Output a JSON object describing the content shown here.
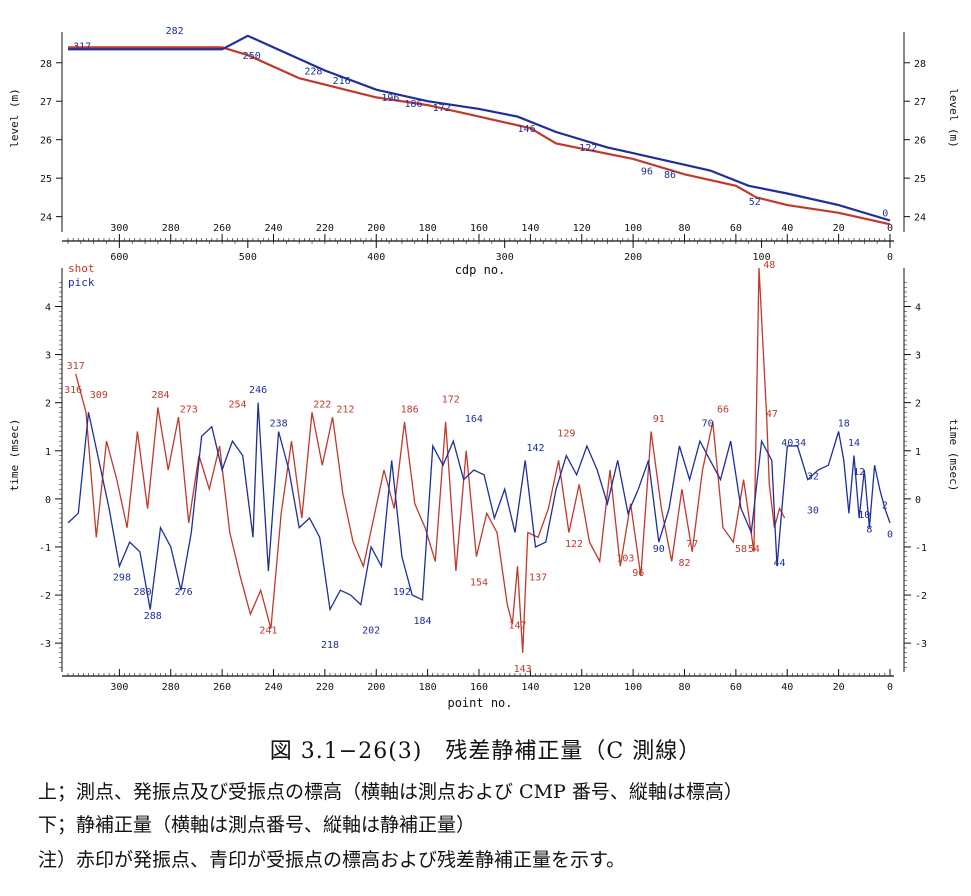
{
  "chart_data": [
    {
      "type": "line",
      "ylabel": "level (m)",
      "xlabel": "cdp no.",
      "y_ticks": [
        24,
        25,
        26,
        27,
        28
      ],
      "ylim": [
        23.6,
        28.8
      ],
      "x_point_ticks": [
        300,
        280,
        260,
        240,
        220,
        200,
        180,
        160,
        140,
        120,
        100,
        80,
        60,
        40,
        20,
        0
      ],
      "x_cdp_ticks": [
        600,
        500,
        400,
        300,
        200,
        100,
        0
      ],
      "xlim_point": [
        320,
        0
      ],
      "series": [
        {
          "color": "#c0392b",
          "x": [
            320,
            300,
            260,
            250,
            230,
            200,
            180,
            160,
            140,
            130,
            100,
            80,
            60,
            52,
            40,
            20,
            0
          ],
          "y": [
            28.4,
            28.4,
            28.4,
            28.2,
            27.6,
            27.1,
            26.9,
            26.6,
            26.3,
            25.9,
            25.5,
            25.1,
            24.8,
            24.5,
            24.3,
            24.1,
            23.8
          ]
        },
        {
          "color": "#1f2f9a",
          "x": [
            320,
            300,
            280,
            260,
            250,
            240,
            220,
            200,
            180,
            160,
            145,
            130,
            110,
            90,
            70,
            55,
            40,
            20,
            0
          ],
          "y": [
            28.35,
            28.35,
            28.35,
            28.35,
            28.7,
            28.4,
            27.8,
            27.3,
            27.0,
            26.8,
            26.6,
            26.2,
            25.8,
            25.5,
            25.2,
            24.8,
            24.6,
            24.3,
            23.9
          ]
        }
      ],
      "labels": [
        {
          "text": "317",
          "x": 318,
          "y": 28.35
        },
        {
          "text": "282",
          "x": 282,
          "y": 28.75
        },
        {
          "text": "250",
          "x": 252,
          "y": 28.1
        },
        {
          "text": "228",
          "x": 228,
          "y": 27.7
        },
        {
          "text": "216",
          "x": 217,
          "y": 27.45
        },
        {
          "text": "196",
          "x": 198,
          "y": 27.0
        },
        {
          "text": "186",
          "x": 189,
          "y": 26.85
        },
        {
          "text": "172",
          "x": 178,
          "y": 26.75
        },
        {
          "text": "146",
          "x": 145,
          "y": 26.2
        },
        {
          "text": "122",
          "x": 121,
          "y": 25.7
        },
        {
          "text": "96",
          "x": 97,
          "y": 25.1
        },
        {
          "text": "86",
          "x": 88,
          "y": 25.0
        },
        {
          "text": "52",
          "x": 55,
          "y": 24.3
        },
        {
          "text": "0",
          "x": 3,
          "y": 24.0
        }
      ]
    },
    {
      "type": "line",
      "ylabel": "time (msec)",
      "xlabel": "point no.",
      "y_ticks": [
        -3,
        -2,
        -1,
        0,
        1,
        2,
        3,
        4
      ],
      "ylim": [
        -3.6,
        4.8
      ],
      "x_ticks": [
        300,
        280,
        260,
        240,
        220,
        200,
        180,
        160,
        140,
        120,
        100,
        80,
        60,
        40,
        20,
        0
      ],
      "xlim": [
        320,
        0
      ],
      "legend": [
        "shot",
        "pick"
      ],
      "series": [
        {
          "name": "shot",
          "color": "#c0392b",
          "x": [
            317,
            313,
            309,
            305,
            301,
            297,
            293,
            289,
            285,
            281,
            277,
            273,
            269,
            265,
            261,
            257,
            253,
            249,
            245,
            241,
            237,
            233,
            229,
            225,
            221,
            217,
            213,
            209,
            205,
            201,
            197,
            193,
            189,
            185,
            181,
            177,
            173,
            169,
            165,
            161,
            157,
            153,
            149,
            147,
            145,
            143,
            141,
            137,
            133,
            129,
            125,
            121,
            117,
            113,
            109,
            105,
            101,
            97,
            93,
            89,
            85,
            81,
            77,
            73,
            69,
            65,
            61,
            57,
            53,
            51,
            48,
            47,
            45,
            43,
            41
          ],
          "y": [
            2.6,
            1.8,
            -0.8,
            1.2,
            0.4,
            -0.6,
            1.4,
            -0.2,
            1.9,
            0.6,
            1.7,
            -0.5,
            0.9,
            0.2,
            1.1,
            -0.7,
            -1.6,
            -2.4,
            -1.9,
            -2.7,
            -0.3,
            1.2,
            -0.4,
            1.8,
            0.7,
            1.7,
            0.1,
            -0.9,
            -1.4,
            -0.4,
            0.6,
            -0.2,
            1.6,
            -0.1,
            -0.6,
            -1.3,
            1.6,
            -1.5,
            1.0,
            -1.2,
            -0.3,
            -0.7,
            -2.2,
            -2.6,
            -1.4,
            -3.2,
            -0.7,
            -0.8,
            -0.2,
            0.8,
            -0.7,
            0.3,
            -0.9,
            -1.3,
            0.6,
            -1.4,
            -0.1,
            -1.6,
            1.4,
            -0.2,
            -1.3,
            0.2,
            -1.1,
            0.6,
            1.6,
            -0.6,
            -0.9,
            0.4,
            -1.1,
            4.8,
            1.7,
            0.3,
            -0.6,
            -0.2,
            -0.4
          ]
        },
        {
          "name": "pick",
          "color": "#1f2f9a",
          "x": [
            320,
            316,
            312,
            308,
            304,
            300,
            296,
            292,
            288,
            284,
            280,
            276,
            272,
            268,
            264,
            260,
            256,
            252,
            248,
            246,
            242,
            238,
            234,
            230,
            226,
            222,
            218,
            214,
            210,
            206,
            202,
            198,
            194,
            190,
            186,
            182,
            178,
            174,
            170,
            166,
            162,
            158,
            154,
            150,
            146,
            142,
            138,
            134,
            130,
            126,
            122,
            118,
            114,
            110,
            106,
            102,
            98,
            94,
            90,
            86,
            82,
            78,
            74,
            70,
            66,
            62,
            58,
            54,
            50,
            46,
            44,
            40,
            36,
            32,
            28,
            24,
            20,
            18,
            16,
            14,
            12,
            10,
            8,
            6,
            4,
            2,
            0
          ],
          "y": [
            -0.5,
            -0.3,
            1.8,
            0.8,
            -0.2,
            -1.4,
            -0.9,
            -1.1,
            -2.3,
            -0.6,
            -1.0,
            -1.9,
            -0.7,
            1.3,
            1.5,
            0.6,
            1.2,
            0.9,
            -0.8,
            2.0,
            -1.5,
            1.4,
            0.6,
            -0.6,
            -0.4,
            -0.8,
            -2.3,
            -1.9,
            -2.0,
            -2.2,
            -1.0,
            -1.4,
            0.8,
            -1.2,
            -2.0,
            -2.1,
            1.1,
            0.7,
            1.2,
            0.4,
            0.6,
            0.5,
            -0.4,
            0.2,
            -0.7,
            0.8,
            -1.0,
            -0.9,
            0.2,
            0.9,
            0.5,
            1.1,
            0.6,
            -0.1,
            0.8,
            -0.3,
            0.2,
            0.8,
            -0.9,
            -0.2,
            1.1,
            0.4,
            1.2,
            0.8,
            0.4,
            1.2,
            -0.2,
            -0.7,
            1.2,
            0.8,
            -1.4,
            1.1,
            1.1,
            0.4,
            0.6,
            0.7,
            1.4,
            0.8,
            -0.3,
            0.9,
            -0.4,
            0.6,
            -0.6,
            0.7,
            0.2,
            -0.2,
            -0.5
          ]
        }
      ],
      "labels": [
        {
          "text": "317",
          "x": 317,
          "y": 2.7,
          "color": "#c0392b"
        },
        {
          "text": "316",
          "x": 318,
          "y": 2.2,
          "color": "#c0392b"
        },
        {
          "text": "309",
          "x": 308,
          "y": 2.1,
          "color": "#c0392b"
        },
        {
          "text": "298",
          "x": 299,
          "y": -1.7,
          "color": "#1f2f9a"
        },
        {
          "text": "288",
          "x": 287,
          "y": -2.5,
          "color": "#1f2f9a"
        },
        {
          "text": "284",
          "x": 284,
          "y": 2.1,
          "color": "#c0392b"
        },
        {
          "text": "280",
          "x": 291,
          "y": -2.0,
          "color": "#1f2f9a"
        },
        {
          "text": "276",
          "x": 275,
          "y": -2.0,
          "color": "#1f2f9a"
        },
        {
          "text": "273",
          "x": 273,
          "y": 1.8,
          "color": "#c0392b"
        },
        {
          "text": "254",
          "x": 254,
          "y": 1.9,
          "color": "#c0392b"
        },
        {
          "text": "246",
          "x": 246,
          "y": 2.2,
          "color": "#1f2f9a"
        },
        {
          "text": "241",
          "x": 242,
          "y": -2.8,
          "color": "#c0392b"
        },
        {
          "text": "238",
          "x": 238,
          "y": 1.5,
          "color": "#1f2f9a"
        },
        {
          "text": "222",
          "x": 221,
          "y": 1.9,
          "color": "#c0392b"
        },
        {
          "text": "218",
          "x": 218,
          "y": -3.1,
          "color": "#1f2f9a"
        },
        {
          "text": "212",
          "x": 212,
          "y": 1.8,
          "color": "#c0392b"
        },
        {
          "text": "202",
          "x": 202,
          "y": -2.8,
          "color": "#1f2f9a"
        },
        {
          "text": "192",
          "x": 190,
          "y": -2.0,
          "color": "#1f2f9a"
        },
        {
          "text": "186",
          "x": 187,
          "y": 1.8,
          "color": "#c0392b"
        },
        {
          "text": "184",
          "x": 182,
          "y": -2.6,
          "color": "#1f2f9a"
        },
        {
          "text": "172",
          "x": 171,
          "y": 2.0,
          "color": "#c0392b"
        },
        {
          "text": "164",
          "x": 162,
          "y": 1.6,
          "color": "#1f2f9a"
        },
        {
          "text": "154",
          "x": 160,
          "y": -1.8,
          "color": "#c0392b"
        },
        {
          "text": "147",
          "x": 145,
          "y": -2.7,
          "color": "#c0392b"
        },
        {
          "text": "142",
          "x": 138,
          "y": 1.0,
          "color": "#1f2f9a"
        },
        {
          "text": "143",
          "x": 143,
          "y": -3.6,
          "color": "#c0392b"
        },
        {
          "text": "137",
          "x": 137,
          "y": -1.7,
          "color": "#c0392b"
        },
        {
          "text": "129",
          "x": 126,
          "y": 1.3,
          "color": "#c0392b"
        },
        {
          "text": "122",
          "x": 123,
          "y": -1.0,
          "color": "#c0392b"
        },
        {
          "text": "103",
          "x": 103,
          "y": -1.3,
          "color": "#c0392b"
        },
        {
          "text": "96",
          "x": 98,
          "y": -1.6,
          "color": "#c0392b"
        },
        {
          "text": "91",
          "x": 90,
          "y": 1.6,
          "color": "#c0392b"
        },
        {
          "text": "90",
          "x": 90,
          "y": -1.1,
          "color": "#1f2f9a"
        },
        {
          "text": "82",
          "x": 80,
          "y": -1.4,
          "color": "#c0392b"
        },
        {
          "text": "77",
          "x": 77,
          "y": -1.0,
          "color": "#c0392b"
        },
        {
          "text": "70",
          "x": 71,
          "y": 1.5,
          "color": "#1f2f9a"
        },
        {
          "text": "66",
          "x": 65,
          "y": 1.8,
          "color": "#c0392b"
        },
        {
          "text": "58",
          "x": 58,
          "y": -1.1,
          "color": "#c0392b"
        },
        {
          "text": "54",
          "x": 53,
          "y": -1.1,
          "color": "#c0392b"
        },
        {
          "text": "48",
          "x": 47,
          "y": 4.8,
          "color": "#c0392b"
        },
        {
          "text": "47",
          "x": 46,
          "y": 1.7,
          "color": "#c0392b"
        },
        {
          "text": "44",
          "x": 43,
          "y": -1.4,
          "color": "#1f2f9a"
        },
        {
          "text": "40",
          "x": 40,
          "y": 1.1,
          "color": "#1f2f9a"
        },
        {
          "text": "34",
          "x": 35,
          "y": 1.1,
          "color": "#1f2f9a"
        },
        {
          "text": "32",
          "x": 30,
          "y": 0.4,
          "color": "#1f2f9a"
        },
        {
          "text": "30",
          "x": 30,
          "y": -0.3,
          "color": "#1f2f9a"
        },
        {
          "text": "18",
          "x": 18,
          "y": 1.5,
          "color": "#1f2f9a"
        },
        {
          "text": "14",
          "x": 14,
          "y": 1.1,
          "color": "#1f2f9a"
        },
        {
          "text": "12",
          "x": 12,
          "y": 0.5,
          "color": "#1f2f9a"
        },
        {
          "text": "10",
          "x": 10,
          "y": -0.4,
          "color": "#1f2f9a"
        },
        {
          "text": "8",
          "x": 8,
          "y": -0.7,
          "color": "#1f2f9a"
        },
        {
          "text": "2",
          "x": 2,
          "y": -0.2,
          "color": "#1f2f9a"
        },
        {
          "text": "0",
          "x": 0,
          "y": -0.8,
          "color": "#1f2f9a"
        }
      ]
    }
  ],
  "caption": {
    "title": "図 3.1−26(3)　残差静補正量（C 測線）",
    "notes": [
      "上；測点、発振点及び受振点の標高（横軸は測点および CMP 番号、縦軸は標高）",
      "下；静補正量（横軸は測点番号、縦軸は静補正量）",
      "注）赤印が発振点、青印が受振点の標高および残差静補正量を示す。"
    ]
  }
}
